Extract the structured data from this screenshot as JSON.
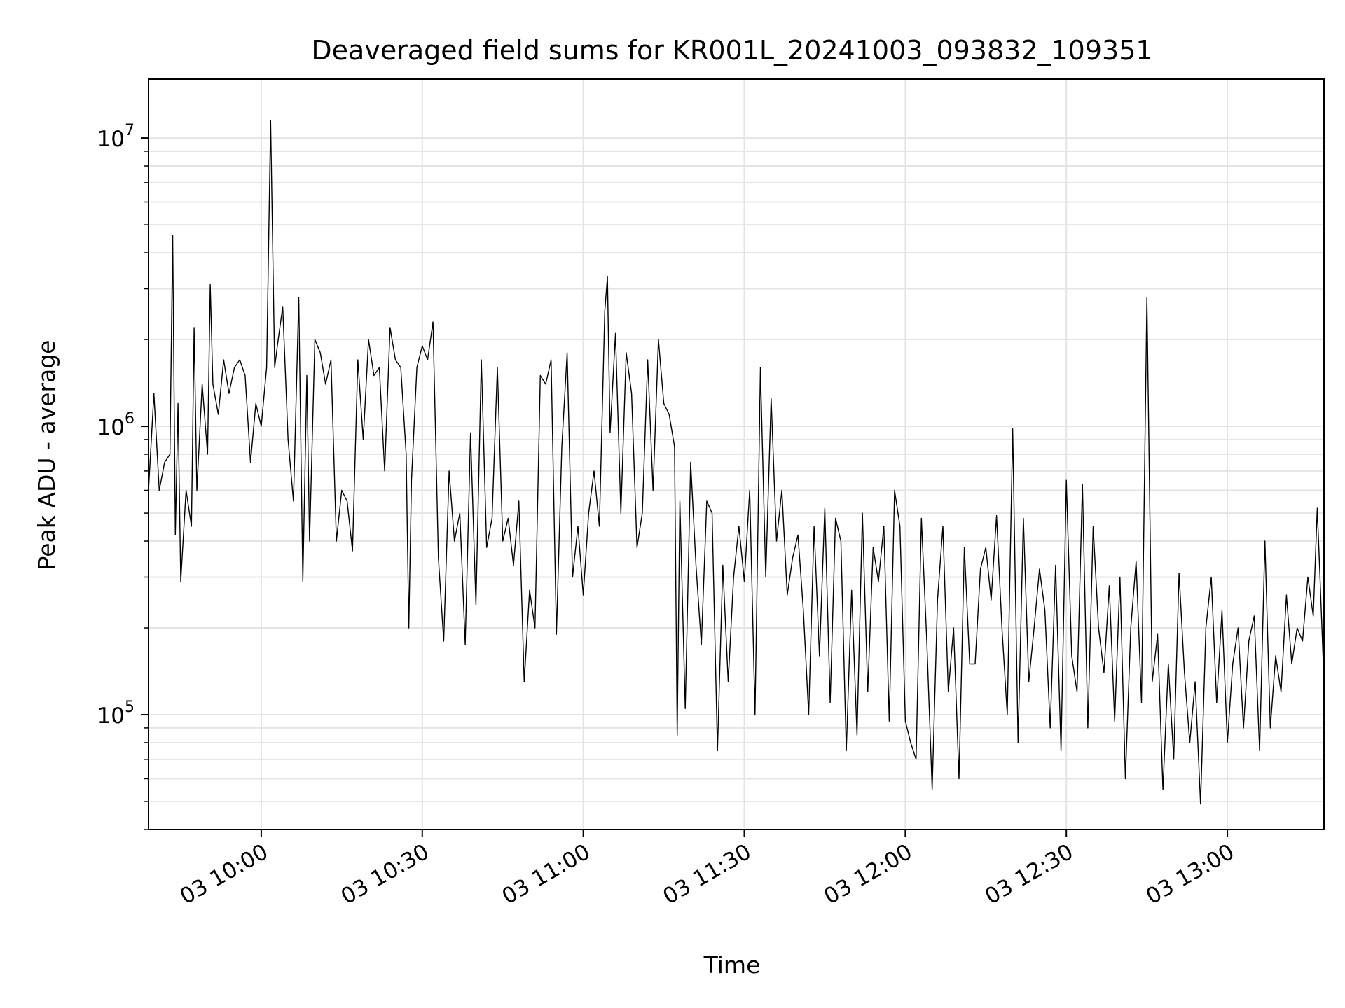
{
  "chart_data": {
    "type": "line",
    "title": "Deaveraged field sums for KR001L_20241003_093832_109351",
    "xlabel": "Time",
    "ylabel": "Peak ADU - average",
    "yscale": "log",
    "ylim": [
      40000,
      16000000
    ],
    "xlim": [
      "2024-10-03 09:39:00",
      "2024-10-03 13:18:00"
    ],
    "grid": true,
    "line_color": "#000000",
    "x_ticks": [
      {
        "t": "2024-10-03 10:00",
        "label": "03 10:00"
      },
      {
        "t": "2024-10-03 10:30",
        "label": "03 10:30"
      },
      {
        "t": "2024-10-03 11:00",
        "label": "03 11:00"
      },
      {
        "t": "2024-10-03 11:30",
        "label": "03 11:30"
      },
      {
        "t": "2024-10-03 12:00",
        "label": "03 12:00"
      },
      {
        "t": "2024-10-03 12:30",
        "label": "03 12:30"
      },
      {
        "t": "2024-10-03 13:00",
        "label": "03 13:00"
      }
    ],
    "y_ticks": [
      {
        "value": 100000,
        "base": "10",
        "exp": "5"
      },
      {
        "value": 1000000,
        "base": "10",
        "exp": "6"
      },
      {
        "value": 10000000,
        "base": "10",
        "exp": "7"
      }
    ],
    "series": [
      {
        "points": [
          [
            "2024-10-03 09:39",
            600000
          ],
          [
            "2024-10-03 09:40",
            1300000
          ],
          [
            "2024-10-03 09:41",
            600000
          ],
          [
            "2024-10-03 09:42",
            750000
          ],
          [
            "2024-10-03 09:43",
            800000
          ],
          [
            "2024-10-03 09:43:30",
            4600000
          ],
          [
            "2024-10-03 09:44",
            420000
          ],
          [
            "2024-10-03 09:44:30",
            1200000
          ],
          [
            "2024-10-03 09:45",
            290000
          ],
          [
            "2024-10-03 09:46",
            600000
          ],
          [
            "2024-10-03 09:47",
            450000
          ],
          [
            "2024-10-03 09:47:30",
            2200000
          ],
          [
            "2024-10-03 09:48",
            600000
          ],
          [
            "2024-10-03 09:49",
            1400000
          ],
          [
            "2024-10-03 09:50",
            800000
          ],
          [
            "2024-10-03 09:50:30",
            3100000
          ],
          [
            "2024-10-03 09:51",
            1400000
          ],
          [
            "2024-10-03 09:52",
            1100000
          ],
          [
            "2024-10-03 09:53",
            1700000
          ],
          [
            "2024-10-03 09:54",
            1300000
          ],
          [
            "2024-10-03 09:55",
            1600000
          ],
          [
            "2024-10-03 09:56",
            1700000
          ],
          [
            "2024-10-03 09:57",
            1500000
          ],
          [
            "2024-10-03 09:58",
            750000
          ],
          [
            "2024-10-03 09:59",
            1200000
          ],
          [
            "2024-10-03 10:00",
            1000000
          ],
          [
            "2024-10-03 10:01",
            1600000
          ],
          [
            "2024-10-03 10:01:45",
            11500000
          ],
          [
            "2024-10-03 10:02:30",
            1600000
          ],
          [
            "2024-10-03 10:03",
            1900000
          ],
          [
            "2024-10-03 10:04",
            2600000
          ],
          [
            "2024-10-03 10:05",
            900000
          ],
          [
            "2024-10-03 10:06",
            550000
          ],
          [
            "2024-10-03 10:07",
            2800000
          ],
          [
            "2024-10-03 10:07:45",
            290000
          ],
          [
            "2024-10-03 10:08:30",
            1500000
          ],
          [
            "2024-10-03 10:09",
            400000
          ],
          [
            "2024-10-03 10:10",
            2000000
          ],
          [
            "2024-10-03 10:11",
            1800000
          ],
          [
            "2024-10-03 10:12",
            1400000
          ],
          [
            "2024-10-03 10:13",
            1700000
          ],
          [
            "2024-10-03 10:14",
            400000
          ],
          [
            "2024-10-03 10:15",
            600000
          ],
          [
            "2024-10-03 10:16",
            550000
          ],
          [
            "2024-10-03 10:17",
            370000
          ],
          [
            "2024-10-03 10:18",
            1700000
          ],
          [
            "2024-10-03 10:19",
            900000
          ],
          [
            "2024-10-03 10:20",
            2000000
          ],
          [
            "2024-10-03 10:21",
            1500000
          ],
          [
            "2024-10-03 10:22",
            1600000
          ],
          [
            "2024-10-03 10:23",
            700000
          ],
          [
            "2024-10-03 10:24",
            2200000
          ],
          [
            "2024-10-03 10:25",
            1700000
          ],
          [
            "2024-10-03 10:26",
            1600000
          ],
          [
            "2024-10-03 10:27",
            800000
          ],
          [
            "2024-10-03 10:27:30",
            200000
          ],
          [
            "2024-10-03 10:28",
            650000
          ],
          [
            "2024-10-03 10:29",
            1600000
          ],
          [
            "2024-10-03 10:30",
            1900000
          ],
          [
            "2024-10-03 10:31",
            1700000
          ],
          [
            "2024-10-03 10:32",
            2300000
          ],
          [
            "2024-10-03 10:33",
            350000
          ],
          [
            "2024-10-03 10:34",
            180000
          ],
          [
            "2024-10-03 10:35",
            700000
          ],
          [
            "2024-10-03 10:36",
            400000
          ],
          [
            "2024-10-03 10:37",
            500000
          ],
          [
            "2024-10-03 10:38",
            175000
          ],
          [
            "2024-10-03 10:39",
            950000
          ],
          [
            "2024-10-03 10:40",
            240000
          ],
          [
            "2024-10-03 10:41",
            1700000
          ],
          [
            "2024-10-03 10:42",
            380000
          ],
          [
            "2024-10-03 10:43",
            480000
          ],
          [
            "2024-10-03 10:44",
            1600000
          ],
          [
            "2024-10-03 10:45",
            400000
          ],
          [
            "2024-10-03 10:46",
            480000
          ],
          [
            "2024-10-03 10:47",
            330000
          ],
          [
            "2024-10-03 10:48",
            550000
          ],
          [
            "2024-10-03 10:49",
            130000
          ],
          [
            "2024-10-03 10:50",
            270000
          ],
          [
            "2024-10-03 10:51",
            200000
          ],
          [
            "2024-10-03 10:52",
            1500000
          ],
          [
            "2024-10-03 10:53",
            1400000
          ],
          [
            "2024-10-03 10:54",
            1700000
          ],
          [
            "2024-10-03 10:55",
            190000
          ],
          [
            "2024-10-03 10:56",
            850000
          ],
          [
            "2024-10-03 10:57",
            1800000
          ],
          [
            "2024-10-03 10:58",
            300000
          ],
          [
            "2024-10-03 10:59",
            450000
          ],
          [
            "2024-10-03 11:00",
            260000
          ],
          [
            "2024-10-03 11:01",
            500000
          ],
          [
            "2024-10-03 11:02",
            700000
          ],
          [
            "2024-10-03 11:03",
            450000
          ],
          [
            "2024-10-03 11:04",
            2500000
          ],
          [
            "2024-10-03 11:04:30",
            3300000
          ],
          [
            "2024-10-03 11:05",
            950000
          ],
          [
            "2024-10-03 11:06",
            2100000
          ],
          [
            "2024-10-03 11:07",
            500000
          ],
          [
            "2024-10-03 11:08",
            1800000
          ],
          [
            "2024-10-03 11:09",
            1300000
          ],
          [
            "2024-10-03 11:10",
            380000
          ],
          [
            "2024-10-03 11:11",
            500000
          ],
          [
            "2024-10-03 11:12",
            1700000
          ],
          [
            "2024-10-03 11:13",
            600000
          ],
          [
            "2024-10-03 11:14",
            2000000
          ],
          [
            "2024-10-03 11:15",
            1200000
          ],
          [
            "2024-10-03 11:16",
            1100000
          ],
          [
            "2024-10-03 11:17",
            850000
          ],
          [
            "2024-10-03 11:17:30",
            85000
          ],
          [
            "2024-10-03 11:18",
            550000
          ],
          [
            "2024-10-03 11:19",
            105000
          ],
          [
            "2024-10-03 11:20",
            750000
          ],
          [
            "2024-10-03 11:21",
            330000
          ],
          [
            "2024-10-03 11:22",
            175000
          ],
          [
            "2024-10-03 11:23",
            550000
          ],
          [
            "2024-10-03 11:24",
            500000
          ],
          [
            "2024-10-03 11:25",
            75000
          ],
          [
            "2024-10-03 11:26",
            330000
          ],
          [
            "2024-10-03 11:27",
            130000
          ],
          [
            "2024-10-03 11:28",
            300000
          ],
          [
            "2024-10-03 11:29",
            450000
          ],
          [
            "2024-10-03 11:30",
            290000
          ],
          [
            "2024-10-03 11:31",
            600000
          ],
          [
            "2024-10-03 11:32",
            100000
          ],
          [
            "2024-10-03 11:33",
            1600000
          ],
          [
            "2024-10-03 11:34",
            300000
          ],
          [
            "2024-10-03 11:35",
            1250000
          ],
          [
            "2024-10-03 11:36",
            400000
          ],
          [
            "2024-10-03 11:37",
            600000
          ],
          [
            "2024-10-03 11:38",
            260000
          ],
          [
            "2024-10-03 11:39",
            350000
          ],
          [
            "2024-10-03 11:40",
            420000
          ],
          [
            "2024-10-03 11:41",
            230000
          ],
          [
            "2024-10-03 11:42",
            100000
          ],
          [
            "2024-10-03 11:43",
            450000
          ],
          [
            "2024-10-03 11:44",
            160000
          ],
          [
            "2024-10-03 11:45",
            520000
          ],
          [
            "2024-10-03 11:46",
            110000
          ],
          [
            "2024-10-03 11:47",
            480000
          ],
          [
            "2024-10-03 11:48",
            400000
          ],
          [
            "2024-10-03 11:49",
            75000
          ],
          [
            "2024-10-03 11:50",
            270000
          ],
          [
            "2024-10-03 11:51",
            85000
          ],
          [
            "2024-10-03 11:52",
            500000
          ],
          [
            "2024-10-03 11:53",
            120000
          ],
          [
            "2024-10-03 11:54",
            380000
          ],
          [
            "2024-10-03 11:55",
            290000
          ],
          [
            "2024-10-03 11:56",
            450000
          ],
          [
            "2024-10-03 11:57",
            95000
          ],
          [
            "2024-10-03 11:58",
            600000
          ],
          [
            "2024-10-03 11:59",
            450000
          ],
          [
            "2024-10-03 12:00",
            95000
          ],
          [
            "2024-10-03 12:01",
            80000
          ],
          [
            "2024-10-03 12:02",
            70000
          ],
          [
            "2024-10-03 12:03",
            480000
          ],
          [
            "2024-10-03 12:04",
            180000
          ],
          [
            "2024-10-03 12:05",
            55000
          ],
          [
            "2024-10-03 12:06",
            250000
          ],
          [
            "2024-10-03 12:07",
            450000
          ],
          [
            "2024-10-03 12:08",
            120000
          ],
          [
            "2024-10-03 12:09",
            200000
          ],
          [
            "2024-10-03 12:10",
            60000
          ],
          [
            "2024-10-03 12:11",
            380000
          ],
          [
            "2024-10-03 12:12",
            150000
          ],
          [
            "2024-10-03 12:13",
            150000
          ],
          [
            "2024-10-03 12:14",
            320000
          ],
          [
            "2024-10-03 12:15",
            380000
          ],
          [
            "2024-10-03 12:16",
            250000
          ],
          [
            "2024-10-03 12:17",
            490000
          ],
          [
            "2024-10-03 12:18",
            200000
          ],
          [
            "2024-10-03 12:19",
            100000
          ],
          [
            "2024-10-03 12:20",
            980000
          ],
          [
            "2024-10-03 12:21",
            80000
          ],
          [
            "2024-10-03 12:22",
            480000
          ],
          [
            "2024-10-03 12:23",
            130000
          ],
          [
            "2024-10-03 12:24",
            200000
          ],
          [
            "2024-10-03 12:25",
            320000
          ],
          [
            "2024-10-03 12:26",
            230000
          ],
          [
            "2024-10-03 12:27",
            90000
          ],
          [
            "2024-10-03 12:28",
            330000
          ],
          [
            "2024-10-03 12:29",
            75000
          ],
          [
            "2024-10-03 12:30",
            650000
          ],
          [
            "2024-10-03 12:31",
            160000
          ],
          [
            "2024-10-03 12:32",
            120000
          ],
          [
            "2024-10-03 12:33",
            630000
          ],
          [
            "2024-10-03 12:34",
            90000
          ],
          [
            "2024-10-03 12:35",
            450000
          ],
          [
            "2024-10-03 12:36",
            200000
          ],
          [
            "2024-10-03 12:37",
            140000
          ],
          [
            "2024-10-03 12:38",
            280000
          ],
          [
            "2024-10-03 12:39",
            95000
          ],
          [
            "2024-10-03 12:40",
            300000
          ],
          [
            "2024-10-03 12:41",
            60000
          ],
          [
            "2024-10-03 12:42",
            200000
          ],
          [
            "2024-10-03 12:43",
            340000
          ],
          [
            "2024-10-03 12:44",
            110000
          ],
          [
            "2024-10-03 12:45",
            2800000
          ],
          [
            "2024-10-03 12:46",
            130000
          ],
          [
            "2024-10-03 12:47",
            190000
          ],
          [
            "2024-10-03 12:48",
            55000
          ],
          [
            "2024-10-03 12:49",
            150000
          ],
          [
            "2024-10-03 12:50",
            70000
          ],
          [
            "2024-10-03 12:51",
            310000
          ],
          [
            "2024-10-03 12:52",
            140000
          ],
          [
            "2024-10-03 12:53",
            80000
          ],
          [
            "2024-10-03 12:54",
            130000
          ],
          [
            "2024-10-03 12:55",
            49000
          ],
          [
            "2024-10-03 12:56",
            200000
          ],
          [
            "2024-10-03 12:57",
            300000
          ],
          [
            "2024-10-03 12:58",
            110000
          ],
          [
            "2024-10-03 12:59",
            230000
          ],
          [
            "2024-10-03 13:00",
            80000
          ],
          [
            "2024-10-03 13:01",
            150000
          ],
          [
            "2024-10-03 13:02",
            200000
          ],
          [
            "2024-10-03 13:03",
            90000
          ],
          [
            "2024-10-03 13:04",
            180000
          ],
          [
            "2024-10-03 13:05",
            220000
          ],
          [
            "2024-10-03 13:06",
            75000
          ],
          [
            "2024-10-03 13:07",
            400000
          ],
          [
            "2024-10-03 13:08",
            90000
          ],
          [
            "2024-10-03 13:09",
            160000
          ],
          [
            "2024-10-03 13:10",
            120000
          ],
          [
            "2024-10-03 13:11",
            260000
          ],
          [
            "2024-10-03 13:12",
            150000
          ],
          [
            "2024-10-03 13:13",
            200000
          ],
          [
            "2024-10-03 13:14",
            180000
          ],
          [
            "2024-10-03 13:15",
            300000
          ],
          [
            "2024-10-03 13:16",
            220000
          ],
          [
            "2024-10-03 13:16:45",
            520000
          ],
          [
            "2024-10-03 13:17:15",
            300000
          ],
          [
            "2024-10-03 13:18",
            130000
          ]
        ]
      }
    ]
  }
}
